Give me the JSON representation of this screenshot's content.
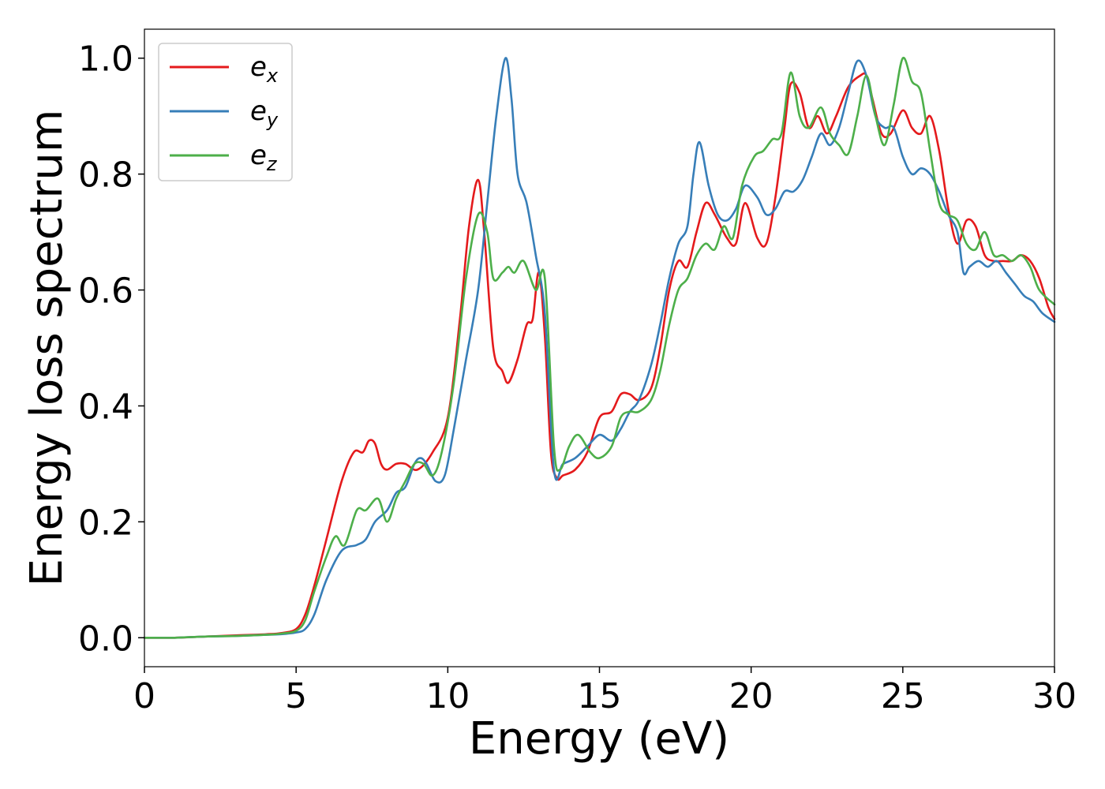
{
  "chart_data": {
    "type": "line",
    "xlabel": "Energy (eV)",
    "ylabel": "Energy loss spectrum",
    "xlim": [
      0,
      30
    ],
    "ylim": [
      -0.05,
      1.05
    ],
    "xticks": [
      0,
      5,
      10,
      15,
      20,
      25,
      30
    ],
    "xtick_labels": [
      "0",
      "5",
      "10",
      "15",
      "20",
      "25",
      "30"
    ],
    "yticks": [
      0.0,
      0.2,
      0.4,
      0.6,
      0.8,
      1.0
    ],
    "ytick_labels": [
      "0.0",
      "0.2",
      "0.4",
      "0.6",
      "0.8",
      "1.0"
    ],
    "grid": false,
    "legend_position": "top-left",
    "series": [
      {
        "name": "e_x",
        "label_main": "e",
        "label_sub": "x",
        "color": "#e41a1c",
        "x": [
          0,
          1,
          2,
          3,
          4,
          4.5,
          5,
          5.3,
          5.6,
          6.0,
          6.5,
          6.9,
          7.2,
          7.4,
          7.6,
          7.8,
          8.0,
          8.3,
          8.6,
          9.0,
          9.5,
          10.0,
          10.4,
          10.7,
          11.0,
          11.2,
          11.5,
          11.8,
          12.0,
          12.3,
          12.6,
          12.8,
          13.0,
          13.2,
          13.4,
          13.6,
          13.8,
          14.2,
          14.6,
          15.0,
          15.4,
          15.7,
          16.0,
          16.3,
          16.7,
          17.0,
          17.3,
          17.6,
          17.9,
          18.2,
          18.5,
          18.8,
          19.2,
          19.5,
          19.8,
          20.2,
          20.5,
          20.8,
          21.1,
          21.3,
          21.6,
          21.9,
          22.2,
          22.5,
          22.8,
          23.2,
          23.6,
          23.8,
          24.0,
          24.3,
          24.6,
          25.0,
          25.3,
          25.6,
          25.9,
          26.2,
          26.5,
          26.8,
          27.1,
          27.4,
          27.7,
          28.0,
          28.3,
          28.6,
          28.9,
          29.2,
          29.5,
          29.8,
          30.0
        ],
        "y": [
          0.0,
          0.0,
          0.002,
          0.004,
          0.006,
          0.008,
          0.015,
          0.04,
          0.09,
          0.17,
          0.27,
          0.32,
          0.32,
          0.34,
          0.335,
          0.3,
          0.29,
          0.3,
          0.3,
          0.29,
          0.32,
          0.38,
          0.55,
          0.71,
          0.79,
          0.7,
          0.5,
          0.46,
          0.44,
          0.48,
          0.54,
          0.55,
          0.63,
          0.52,
          0.32,
          0.275,
          0.28,
          0.29,
          0.32,
          0.38,
          0.39,
          0.42,
          0.42,
          0.41,
          0.43,
          0.5,
          0.6,
          0.65,
          0.64,
          0.7,
          0.75,
          0.73,
          0.69,
          0.68,
          0.75,
          0.69,
          0.68,
          0.76,
          0.88,
          0.955,
          0.94,
          0.88,
          0.9,
          0.87,
          0.9,
          0.95,
          0.97,
          0.97,
          0.93,
          0.87,
          0.87,
          0.91,
          0.88,
          0.87,
          0.9,
          0.84,
          0.74,
          0.68,
          0.72,
          0.71,
          0.66,
          0.65,
          0.65,
          0.65,
          0.66,
          0.65,
          0.62,
          0.57,
          0.55
        ]
      },
      {
        "name": "e_y",
        "label_main": "e",
        "label_sub": "y",
        "color": "#377eb8",
        "x": [
          0,
          1,
          2,
          3,
          4,
          4.5,
          5,
          5.3,
          5.6,
          6.0,
          6.5,
          7.0,
          7.3,
          7.6,
          8.0,
          8.3,
          8.6,
          8.9,
          9.1,
          9.3,
          9.6,
          9.9,
          10.2,
          10.6,
          11.0,
          11.3,
          11.6,
          11.9,
          12.1,
          12.3,
          12.6,
          12.9,
          13.2,
          13.5,
          13.8,
          14.2,
          14.6,
          15.0,
          15.4,
          15.7,
          16.0,
          16.3,
          16.7,
          17.0,
          17.3,
          17.6,
          17.9,
          18.1,
          18.3,
          18.6,
          18.9,
          19.2,
          19.5,
          19.8,
          20.2,
          20.5,
          20.8,
          21.1,
          21.4,
          21.7,
          22.0,
          22.3,
          22.6,
          22.9,
          23.2,
          23.5,
          23.8,
          24.1,
          24.4,
          24.7,
          25.0,
          25.3,
          25.6,
          25.9,
          26.2,
          26.5,
          26.8,
          27.0,
          27.2,
          27.5,
          27.8,
          28.1,
          28.4,
          28.7,
          29.0,
          29.3,
          29.6,
          30.0
        ],
        "y": [
          0.0,
          0.0,
          0.002,
          0.003,
          0.005,
          0.006,
          0.009,
          0.015,
          0.04,
          0.1,
          0.15,
          0.16,
          0.17,
          0.2,
          0.22,
          0.25,
          0.26,
          0.3,
          0.31,
          0.3,
          0.27,
          0.28,
          0.36,
          0.48,
          0.6,
          0.75,
          0.9,
          1.0,
          0.93,
          0.8,
          0.75,
          0.66,
          0.56,
          0.29,
          0.3,
          0.31,
          0.33,
          0.35,
          0.34,
          0.36,
          0.39,
          0.41,
          0.47,
          0.54,
          0.62,
          0.68,
          0.71,
          0.8,
          0.855,
          0.78,
          0.73,
          0.72,
          0.74,
          0.78,
          0.76,
          0.73,
          0.74,
          0.77,
          0.77,
          0.79,
          0.83,
          0.87,
          0.85,
          0.88,
          0.94,
          0.995,
          0.97,
          0.9,
          0.88,
          0.88,
          0.83,
          0.8,
          0.81,
          0.8,
          0.77,
          0.73,
          0.7,
          0.63,
          0.64,
          0.65,
          0.64,
          0.65,
          0.63,
          0.61,
          0.59,
          0.58,
          0.56,
          0.545
        ]
      },
      {
        "name": "e_z",
        "label_main": "e",
        "label_sub": "z",
        "color": "#4daf4a",
        "x": [
          0,
          1,
          2,
          3,
          4,
          4.5,
          5,
          5.3,
          5.6,
          6.0,
          6.3,
          6.6,
          7.0,
          7.3,
          7.7,
          8.0,
          8.3,
          8.6,
          8.9,
          9.2,
          9.5,
          9.8,
          10.2,
          10.6,
          11.0,
          11.3,
          11.5,
          11.8,
          12.0,
          12.2,
          12.5,
          12.9,
          13.2,
          13.5,
          13.7,
          14.0,
          14.3,
          14.7,
          15.0,
          15.4,
          15.7,
          16.0,
          16.3,
          16.7,
          17.0,
          17.3,
          17.6,
          17.9,
          18.2,
          18.5,
          18.8,
          19.1,
          19.4,
          19.7,
          20.1,
          20.4,
          20.7,
          21.0,
          21.3,
          21.6,
          21.9,
          22.3,
          22.6,
          22.9,
          23.2,
          23.5,
          23.8,
          24.1,
          24.4,
          24.7,
          25.0,
          25.3,
          25.6,
          25.9,
          26.2,
          26.5,
          26.8,
          27.1,
          27.4,
          27.7,
          28.0,
          28.3,
          28.6,
          28.9,
          29.2,
          29.5,
          30.0
        ],
        "y": [
          0.0,
          0.0,
          0.002,
          0.003,
          0.005,
          0.007,
          0.012,
          0.03,
          0.08,
          0.14,
          0.175,
          0.16,
          0.22,
          0.22,
          0.24,
          0.2,
          0.24,
          0.27,
          0.3,
          0.3,
          0.28,
          0.32,
          0.44,
          0.62,
          0.73,
          0.7,
          0.62,
          0.63,
          0.64,
          0.63,
          0.65,
          0.6,
          0.62,
          0.33,
          0.29,
          0.33,
          0.35,
          0.32,
          0.31,
          0.33,
          0.38,
          0.39,
          0.39,
          0.41,
          0.46,
          0.54,
          0.6,
          0.62,
          0.66,
          0.68,
          0.67,
          0.71,
          0.69,
          0.78,
          0.83,
          0.84,
          0.86,
          0.87,
          0.975,
          0.9,
          0.88,
          0.915,
          0.87,
          0.85,
          0.835,
          0.9,
          0.97,
          0.9,
          0.85,
          0.92,
          1.0,
          0.96,
          0.94,
          0.84,
          0.75,
          0.73,
          0.72,
          0.68,
          0.67,
          0.7,
          0.66,
          0.66,
          0.65,
          0.66,
          0.64,
          0.6,
          0.575
        ]
      }
    ]
  }
}
